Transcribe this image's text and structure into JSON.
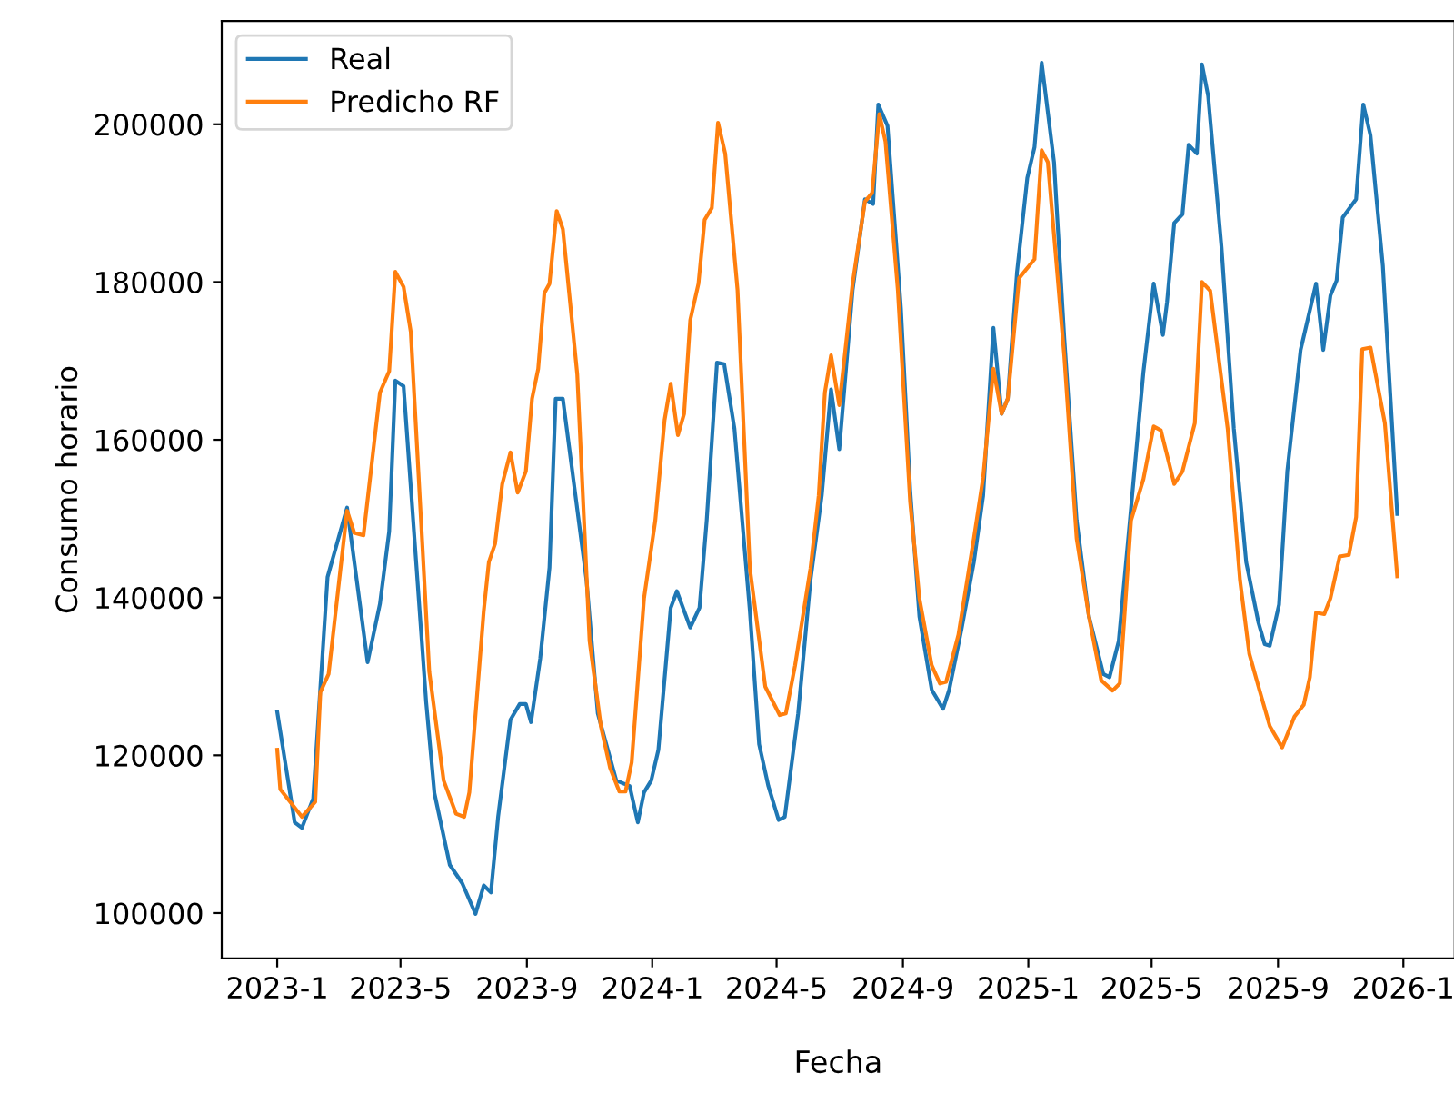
{
  "chart_data": {
    "type": "line",
    "xlabel": "Fecha",
    "ylabel": "Consumo horario",
    "legend": "top left",
    "grid": false,
    "marker": "none",
    "line_style": "solid",
    "xlim": [
      "2022-11-08",
      "2026-02-20"
    ],
    "xticks": [
      {
        "value": "2023-01-01",
        "label": "2023-1"
      },
      {
        "value": "2023-05-01",
        "label": "2023-5"
      },
      {
        "value": "2023-09-01",
        "label": "2023-9"
      },
      {
        "value": "2024-01-01",
        "label": "2024-1"
      },
      {
        "value": "2024-05-01",
        "label": "2024-5"
      },
      {
        "value": "2024-09-01",
        "label": "2024-9"
      },
      {
        "value": "2025-01-01",
        "label": "2025-1"
      },
      {
        "value": "2025-05-01",
        "label": "2025-5"
      },
      {
        "value": "2025-09-01",
        "label": "2025-9"
      },
      {
        "value": "2026-01-01",
        "label": "2026-1"
      }
    ],
    "ylim": [
      94240,
      213100
    ],
    "yticks": [
      100000,
      120000,
      140000,
      160000,
      180000,
      200000
    ],
    "series": [
      {
        "name": "Real",
        "color": "#1f77b4",
        "x": [
          "2023-01-01",
          "2023-01-18",
          "2023-01-25",
          "2023-02-05",
          "2023-02-19",
          "2023-03-10",
          "2023-03-30",
          "2023-04-11",
          "2023-04-20",
          "2023-04-26",
          "2023-05-04",
          "2023-05-26",
          "2023-06-03",
          "2023-06-18",
          "2023-06-30",
          "2023-07-13",
          "2023-07-21",
          "2023-07-28",
          "2023-08-04",
          "2023-08-16",
          "2023-08-25",
          "2023-08-31",
          "2023-09-05",
          "2023-09-14",
          "2023-09-23",
          "2023-09-29",
          "2023-10-06",
          "2023-10-29",
          "2023-11-09",
          "2023-11-27",
          "2023-12-10",
          "2023-12-18",
          "2023-12-24",
          "2023-12-31",
          "2024-01-07",
          "2024-01-19",
          "2024-01-25",
          "2024-02-07",
          "2024-02-16",
          "2024-02-23",
          "2024-03-04",
          "2024-03-11",
          "2024-03-21",
          "2024-04-05",
          "2024-04-14",
          "2024-04-23",
          "2024-05-03",
          "2024-05-09",
          "2024-05-22",
          "2024-06-03",
          "2024-06-14",
          "2024-06-23",
          "2024-07-01",
          "2024-07-14",
          "2024-07-26",
          "2024-08-03",
          "2024-08-08",
          "2024-08-17",
          "2024-08-30",
          "2024-09-08",
          "2024-09-17",
          "2024-09-29",
          "2024-10-10",
          "2024-10-16",
          "2024-10-28",
          "2024-11-09",
          "2024-11-18",
          "2024-11-28",
          "2024-12-06",
          "2024-12-12",
          "2024-12-21",
          "2024-12-31",
          "2025-01-07",
          "2025-01-14",
          "2025-01-26",
          "2025-02-05",
          "2025-02-17",
          "2025-03-01",
          "2025-03-15",
          "2025-03-21",
          "2025-03-30",
          "2025-04-11",
          "2025-04-23",
          "2025-05-03",
          "2025-05-12",
          "2025-05-16",
          "2025-05-23",
          "2025-05-31",
          "2025-06-06",
          "2025-06-14",
          "2025-06-19",
          "2025-06-25",
          "2025-07-08",
          "2025-07-20",
          "2025-08-01",
          "2025-08-13",
          "2025-08-19",
          "2025-08-24",
          "2025-09-02",
          "2025-09-10",
          "2025-09-23",
          "2025-10-08",
          "2025-10-15",
          "2025-10-22",
          "2025-10-28",
          "2025-11-03",
          "2025-11-16",
          "2025-11-23",
          "2025-11-30",
          "2025-12-12",
          "2025-12-26"
        ],
        "values": [
          125500,
          111500,
          110800,
          114500,
          142600,
          151400,
          131800,
          139200,
          148400,
          167500,
          166800,
          126700,
          115200,
          106100,
          103800,
          99900,
          103500,
          102600,
          112200,
          124500,
          126500,
          126500,
          124200,
          132300,
          143800,
          165200,
          165200,
          142200,
          125300,
          116800,
          116100,
          111500,
          115300,
          116800,
          120700,
          138700,
          140800,
          136200,
          138700,
          149800,
          169800,
          169600,
          161400,
          138300,
          121400,
          116100,
          111800,
          112200,
          125300,
          142200,
          153000,
          166400,
          158800,
          179000,
          190500,
          189900,
          202500,
          199800,
          176700,
          153700,
          137600,
          128300,
          125900,
          128300,
          136000,
          144500,
          152900,
          174200,
          163300,
          165200,
          181300,
          193200,
          197100,
          207800,
          195200,
          172900,
          149800,
          137600,
          130300,
          129900,
          134500,
          151400,
          168600,
          179800,
          173300,
          177500,
          187500,
          188600,
          197400,
          196300,
          207600,
          203600,
          184400,
          161400,
          144500,
          136800,
          134100,
          133900,
          139100,
          156000,
          171400,
          179800,
          171400,
          178300,
          180200,
          188200,
          190500,
          202500,
          198600,
          182100,
          150600
        ]
      },
      {
        "name": "Predicho RF",
        "color": "#ff7f0e",
        "x": [
          "2023-01-01",
          "2023-01-04",
          "2023-01-25",
          "2023-02-07",
          "2023-02-12",
          "2023-02-20",
          "2023-03-10",
          "2023-03-17",
          "2023-03-26",
          "2023-04-11",
          "2023-04-20",
          "2023-04-26",
          "2023-05-04",
          "2023-05-11",
          "2023-05-29",
          "2023-06-12",
          "2023-06-24",
          "2023-07-02",
          "2023-07-07",
          "2023-07-21",
          "2023-07-26",
          "2023-08-01",
          "2023-08-08",
          "2023-08-16",
          "2023-08-23",
          "2023-08-31",
          "2023-09-06",
          "2023-09-12",
          "2023-09-18",
          "2023-09-23",
          "2023-09-30",
          "2023-10-06",
          "2023-10-20",
          "2023-11-01",
          "2023-11-12",
          "2023-11-21",
          "2023-11-30",
          "2023-12-06",
          "2023-12-12",
          "2023-12-24",
          "2024-01-04",
          "2024-01-13",
          "2024-01-19",
          "2024-01-26",
          "2024-02-01",
          "2024-02-07",
          "2024-02-15",
          "2024-02-21",
          "2024-02-28",
          "2024-03-05",
          "2024-03-12",
          "2024-03-24",
          "2024-04-05",
          "2024-04-20",
          "2024-05-04",
          "2024-05-10",
          "2024-05-19",
          "2024-06-03",
          "2024-06-11",
          "2024-06-17",
          "2024-06-23",
          "2024-07-01",
          "2024-07-14",
          "2024-07-26",
          "2024-08-02",
          "2024-08-09",
          "2024-08-15",
          "2024-08-27",
          "2024-09-08",
          "2024-09-17",
          "2024-09-29",
          "2024-10-07",
          "2024-10-13",
          "2024-10-25",
          "2024-11-09",
          "2024-11-18",
          "2024-11-28",
          "2024-12-06",
          "2024-12-12",
          "2024-12-23",
          "2025-01-07",
          "2025-01-14",
          "2025-01-20",
          "2025-02-05",
          "2025-02-17",
          "2025-03-01",
          "2025-03-13",
          "2025-03-24",
          "2025-03-31",
          "2025-04-11",
          "2025-04-23",
          "2025-05-03",
          "2025-05-10",
          "2025-05-23",
          "2025-05-31",
          "2025-06-12",
          "2025-06-19",
          "2025-06-27",
          "2025-07-14",
          "2025-07-26",
          "2025-08-04",
          "2025-08-13",
          "2025-08-24",
          "2025-09-05",
          "2025-09-17",
          "2025-09-26",
          "2025-10-02",
          "2025-10-08",
          "2025-10-16",
          "2025-10-22",
          "2025-10-31",
          "2025-11-09",
          "2025-11-16",
          "2025-11-22",
          "2025-11-30",
          "2025-12-14",
          "2025-12-26"
        ],
        "values": [
          120700,
          115700,
          112200,
          114100,
          128000,
          130300,
          151000,
          148200,
          147900,
          166000,
          168700,
          181300,
          179400,
          173700,
          130600,
          116800,
          112600,
          112200,
          115300,
          138300,
          144500,
          146800,
          154400,
          158400,
          153300,
          156000,
          165200,
          169000,
          178600,
          179800,
          189000,
          186700,
          168300,
          134500,
          123700,
          118400,
          115400,
          115400,
          119100,
          139900,
          149800,
          162500,
          167100,
          160600,
          163300,
          175200,
          179800,
          187900,
          189400,
          200200,
          196300,
          179000,
          143700,
          128700,
          125100,
          125300,
          131400,
          143700,
          152900,
          166000,
          170700,
          164400,
          179800,
          190200,
          191300,
          201300,
          197800,
          179000,
          152100,
          139900,
          131400,
          129100,
          129300,
          135300,
          147500,
          155200,
          169000,
          163300,
          165200,
          180500,
          182900,
          196700,
          195200,
          170600,
          147500,
          137600,
          129500,
          128200,
          129100,
          149800,
          155000,
          161700,
          161200,
          154400,
          156000,
          162100,
          180000,
          178900,
          161400,
          142200,
          132900,
          128700,
          123700,
          121000,
          124900,
          126400,
          129900,
          138100,
          137900,
          139900,
          145200,
          145400,
          150200,
          171500,
          171700,
          162100,
          142700
        ]
      }
    ]
  }
}
